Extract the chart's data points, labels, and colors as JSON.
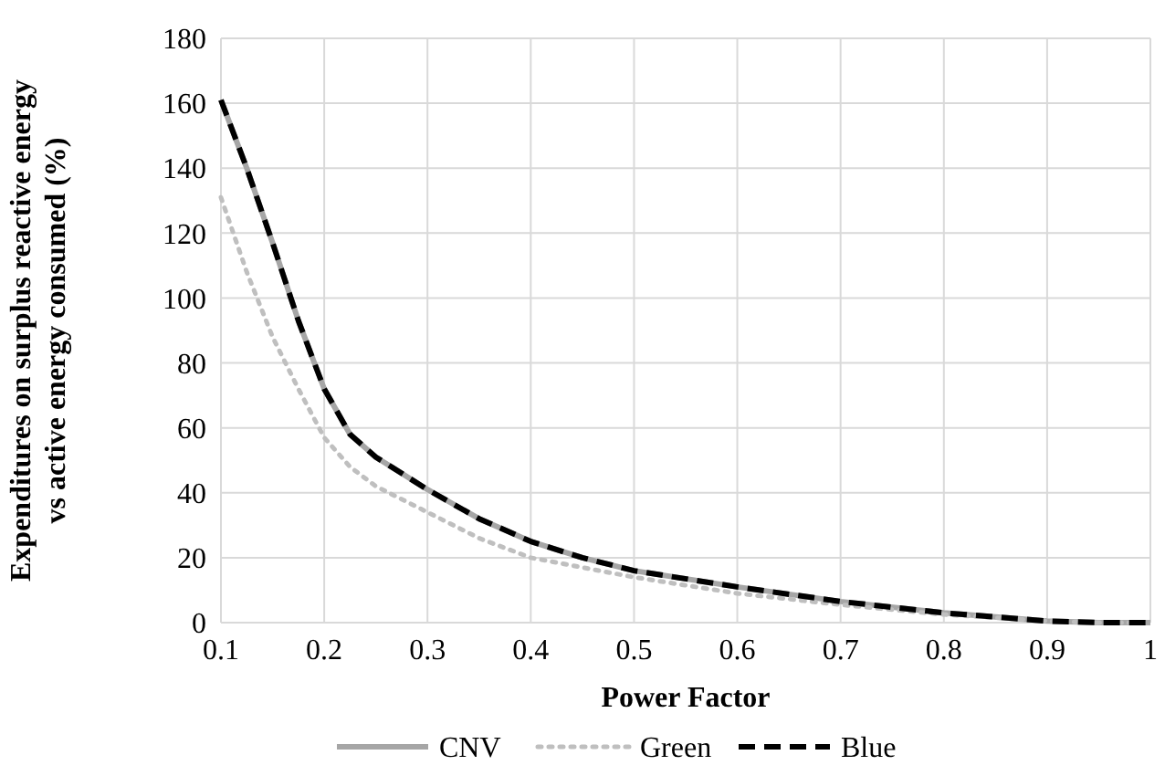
{
  "chart_data": {
    "type": "line",
    "xlabel": "Power Factor",
    "ylabel": "Expenditures on surplus reactive energy vs active energy consumed (%)",
    "x": [
      0.1,
      0.125,
      0.15,
      0.175,
      0.2,
      0.225,
      0.25,
      0.3,
      0.35,
      0.4,
      0.45,
      0.5,
      0.6,
      0.7,
      0.8,
      0.9,
      0.95,
      1
    ],
    "series": [
      {
        "name": "CNV",
        "color": "#a6a6a6",
        "line_style": "solid",
        "values": [
          161,
          140,
          117,
          93,
          72,
          58,
          51,
          41,
          32,
          25,
          20,
          16,
          11,
          6.5,
          3,
          0.5,
          0,
          0
        ]
      },
      {
        "name": "Green",
        "color": "#bfbfbf",
        "line_style": "dotted",
        "values": [
          131,
          108,
          88,
          72,
          57,
          48,
          42,
          34,
          26,
          20,
          17,
          14,
          9,
          5.5,
          2.5,
          0.5,
          0,
          0
        ]
      },
      {
        "name": "Blue",
        "color": "#000000",
        "line_style": "dashed",
        "values": [
          161,
          140,
          117,
          93,
          72,
          58,
          51,
          41,
          32,
          25,
          20,
          16,
          11,
          6.5,
          3,
          0.5,
          0,
          0
        ]
      }
    ],
    "xlim": [
      0.1,
      1
    ],
    "xticks": [
      0.1,
      0.2,
      0.3,
      0.4,
      0.5,
      0.6,
      0.7,
      0.8,
      0.9,
      1
    ],
    "ylim": [
      0,
      180
    ],
    "yticks": [
      0,
      20,
      40,
      60,
      80,
      100,
      120,
      140,
      160,
      180
    ],
    "grid": true,
    "legend": "bottom"
  }
}
